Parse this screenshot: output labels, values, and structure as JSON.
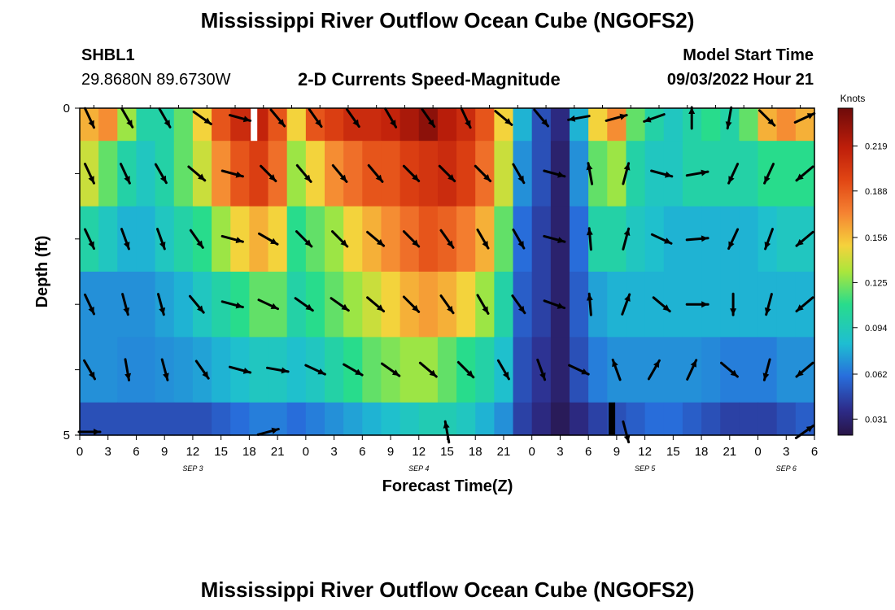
{
  "header": {
    "title": "Mississippi River Outflow Ocean Cube (NGOFS2)",
    "station_id": "SHBL1",
    "station_coords": "29.8680N  89.6730W",
    "plot_label": "2-D Currents Speed-Magnitude",
    "model_start_label": "Model Start Time",
    "model_start_value": "09/03/2022 Hour 21"
  },
  "footer": {
    "title_repeat": "Mississippi River Outflow Ocean Cube (NGOFS2)"
  },
  "chart_data": {
    "type": "heatmap",
    "xlabel": "Forecast Time(Z)",
    "ylabel": "Depth (ft)",
    "ylim": [
      0,
      5
    ],
    "y_ticks": [
      "0",
      "5"
    ],
    "x_tick_labels": [
      "0",
      "3",
      "6",
      "9",
      "12",
      "15",
      "18",
      "21",
      "0",
      "3",
      "6",
      "9",
      "12",
      "15",
      "18",
      "21",
      "0",
      "3",
      "6",
      "9",
      "12",
      "15",
      "18",
      "21",
      "0",
      "3",
      "6"
    ],
    "date_labels": [
      {
        "label": "SEP 3",
        "hours": 12
      },
      {
        "label": "SEP 4",
        "hours": 36
      },
      {
        "label": "SEP 5",
        "hours": 60
      },
      {
        "label": "SEP 6",
        "hours": 75
      }
    ],
    "x_range_hours": [
      0,
      78
    ],
    "colorbar": {
      "unit": "Knots",
      "range": [
        0.02,
        0.245
      ],
      "tick_values": [
        0.219,
        0.188,
        0.156,
        0.125,
        0.094,
        0.062,
        0.031
      ],
      "tick_labels": [
        "0.219",
        "0.188",
        "0.156",
        "0.125",
        "0.094",
        "0.062",
        "0.031"
      ]
    },
    "layers": [
      {
        "depth": 0,
        "speeds": [
          0.16,
          0.17,
          0.13,
          0.1,
          0.1,
          0.12,
          0.15,
          0.19,
          0.21,
          0.215,
          0.19,
          0.15,
          0.19,
          0.2,
          0.21,
          0.21,
          0.215,
          0.225,
          0.235,
          0.22,
          0.21,
          0.19,
          0.15,
          0.08,
          0.05,
          0.035,
          0.08,
          0.15,
          0.17,
          0.12,
          0.1,
          0.09,
          0.1,
          0.11,
          0.1,
          0.12,
          0.16,
          0.17,
          0.16
        ]
      },
      {
        "depth": 1,
        "speeds": [
          0.14,
          0.12,
          0.1,
          0.09,
          0.1,
          0.12,
          0.14,
          0.17,
          0.19,
          0.2,
          0.18,
          0.13,
          0.15,
          0.17,
          0.18,
          0.19,
          0.19,
          0.2,
          0.205,
          0.21,
          0.2,
          0.18,
          0.14,
          0.07,
          0.05,
          0.03,
          0.07,
          0.12,
          0.13,
          0.1,
          0.09,
          0.09,
          0.1,
          0.1,
          0.1,
          0.1,
          0.11,
          0.11,
          0.11
        ]
      },
      {
        "depth": 2,
        "speeds": [
          0.1,
          0.09,
          0.08,
          0.08,
          0.09,
          0.1,
          0.11,
          0.13,
          0.15,
          0.16,
          0.15,
          0.11,
          0.12,
          0.13,
          0.15,
          0.16,
          0.17,
          0.18,
          0.19,
          0.185,
          0.175,
          0.16,
          0.12,
          0.06,
          0.045,
          0.03,
          0.06,
          0.1,
          0.1,
          0.09,
          0.085,
          0.08,
          0.08,
          0.08,
          0.08,
          0.08,
          0.085,
          0.09,
          0.09
        ]
      },
      {
        "depth": 3,
        "speeds": [
          0.07,
          0.07,
          0.07,
          0.07,
          0.075,
          0.08,
          0.09,
          0.1,
          0.11,
          0.12,
          0.12,
          0.1,
          0.11,
          0.12,
          0.13,
          0.14,
          0.15,
          0.16,
          0.165,
          0.16,
          0.15,
          0.13,
          0.1,
          0.055,
          0.045,
          0.03,
          0.055,
          0.075,
          0.08,
          0.08,
          0.08,
          0.08,
          0.08,
          0.08,
          0.08,
          0.08,
          0.08,
          0.08,
          0.08
        ]
      },
      {
        "depth": 4,
        "speeds": [
          0.07,
          0.07,
          0.068,
          0.068,
          0.07,
          0.072,
          0.075,
          0.08,
          0.085,
          0.09,
          0.09,
          0.085,
          0.09,
          0.1,
          0.11,
          0.12,
          0.125,
          0.13,
          0.13,
          0.12,
          0.11,
          0.1,
          0.085,
          0.05,
          0.04,
          0.03,
          0.05,
          0.065,
          0.07,
          0.07,
          0.07,
          0.07,
          0.07,
          0.068,
          0.065,
          0.065,
          0.065,
          0.07,
          0.07
        ]
      },
      {
        "depth": 5,
        "speeds": [
          0.05,
          0.05,
          0.05,
          0.05,
          0.05,
          0.05,
          0.05,
          0.055,
          0.06,
          0.065,
          0.065,
          0.06,
          0.065,
          0.07,
          0.075,
          0.08,
          0.085,
          0.09,
          0.095,
          0.095,
          0.09,
          0.08,
          0.07,
          0.045,
          0.035,
          0.025,
          0.035,
          0.045,
          0.05,
          0.055,
          0.06,
          0.06,
          0.055,
          0.05,
          0.045,
          0.045,
          0.045,
          0.05,
          0.055
        ]
      }
    ],
    "vectors": [
      {
        "depth": 0,
        "angles": [
          65,
          60,
          60,
          35,
          15,
          50,
          55,
          55,
          60,
          55,
          65,
          40,
          50,
          170,
          -15,
          160,
          -90,
          100,
          45,
          -25
        ]
      },
      {
        "depth": 1,
        "angles": [
          65,
          65,
          60,
          40,
          15,
          45,
          50,
          50,
          50,
          45,
          45,
          45,
          60,
          15,
          -100,
          -75,
          15,
          -10,
          115,
          115,
          140
        ]
      },
      {
        "depth": 2,
        "angles": [
          65,
          70,
          70,
          55,
          15,
          30,
          45,
          45,
          40,
          45,
          55,
          60,
          60,
          15,
          -95,
          -75,
          25,
          -5,
          115,
          110,
          140
        ]
      },
      {
        "depth": 3,
        "angles": [
          65,
          75,
          75,
          50,
          15,
          25,
          35,
          35,
          40,
          45,
          55,
          60,
          55,
          20,
          -95,
          -70,
          40,
          0,
          90,
          105,
          140
        ]
      },
      {
        "depth": 4,
        "angles": [
          60,
          80,
          75,
          55,
          15,
          10,
          25,
          30,
          35,
          40,
          45,
          60,
          70,
          25,
          -110,
          -60,
          -65,
          40,
          105,
          140
        ]
      },
      {
        "depth": 5,
        "angles": [
          0,
          -15,
          -100,
          75,
          -35
        ]
      }
    ],
    "missing_markers": [
      {
        "depth_band": 0,
        "hours": 18.5,
        "color": "white"
      },
      {
        "depth_band": 5,
        "hours": 56.5,
        "color": "black"
      }
    ]
  }
}
